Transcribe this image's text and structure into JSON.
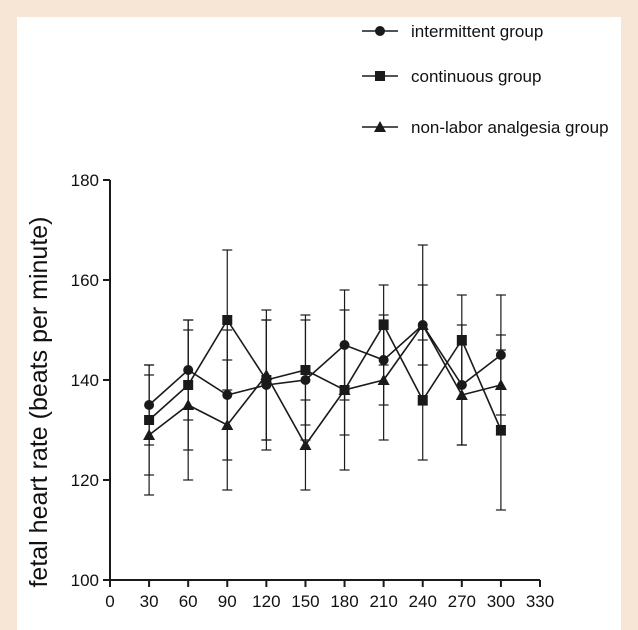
{
  "chart_data": {
    "type": "line",
    "ylabel": "fetal heart rate (beats per minute)",
    "xlim": [
      0,
      330
    ],
    "ylim": [
      100,
      180
    ],
    "x_ticks": [
      0,
      30,
      60,
      90,
      120,
      150,
      180,
      210,
      240,
      270,
      300,
      330
    ],
    "y_ticks": [
      100,
      120,
      140,
      160,
      180
    ],
    "x": [
      30,
      60,
      90,
      120,
      150,
      180,
      210,
      240,
      270,
      300
    ],
    "legend_position": "top-right",
    "grid": false,
    "series": [
      {
        "name": "intermittent group",
        "marker": "circle",
        "values": [
          135,
          142,
          137,
          139,
          140,
          147,
          144,
          151,
          139,
          145
        ],
        "error": [
          8,
          10,
          13,
          13,
          12,
          11,
          9,
          16,
          12,
          12
        ]
      },
      {
        "name": "continuous group",
        "marker": "square",
        "values": [
          132,
          139,
          152,
          140,
          142,
          138,
          151,
          136,
          148,
          130
        ],
        "error": [
          11,
          13,
          14,
          12,
          11,
          16,
          8,
          12,
          9,
          16
        ]
      },
      {
        "name": "non-labor analgesia group",
        "marker": "triangle",
        "values": [
          129,
          135,
          131,
          141,
          127,
          138,
          140,
          151,
          137,
          139
        ],
        "error": [
          12,
          15,
          13,
          13,
          9,
          9,
          12,
          8,
          10,
          10
        ]
      }
    ],
    "colors": {
      "line": "#1a1a1a",
      "background": "#f7e6d6",
      "plot": "#ffffff"
    }
  }
}
